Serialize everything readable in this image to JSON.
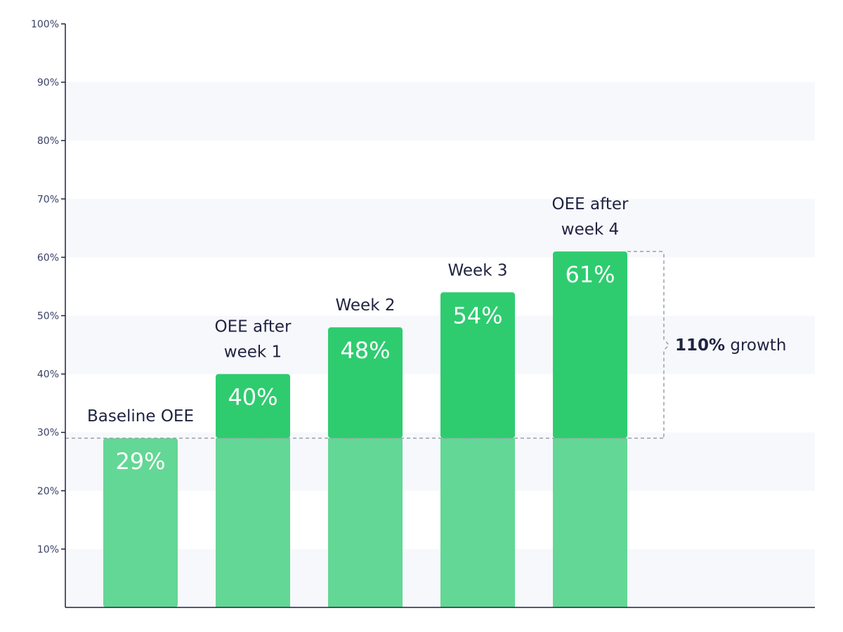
{
  "chart_data": {
    "type": "bar",
    "categories": [
      [
        "Baseline OEE"
      ],
      [
        "OEE after",
        "week 1"
      ],
      [
        "Week 2"
      ],
      [
        "Week 3"
      ],
      [
        "OEE after",
        "week 4"
      ]
    ],
    "values": [
      29,
      40,
      48,
      54,
      61
    ],
    "value_labels": [
      "29%",
      "40%",
      "48%",
      "54%",
      "61%"
    ],
    "baseline": 29,
    "ylim": [
      0,
      100
    ],
    "y_ticks": [
      10,
      20,
      30,
      40,
      50,
      60,
      70,
      80,
      90,
      100
    ],
    "y_tick_labels": [
      "10%",
      "20%",
      "30%",
      "40%",
      "50%",
      "60%",
      "70%",
      "80%",
      "90%",
      "100%"
    ],
    "grid": "alternating bands",
    "annotation": {
      "bold": "110%",
      "text": " growth"
    },
    "colors": {
      "bar": "#2ecc6f",
      "bar_below_baseline": "#63d795",
      "band": "#f6f8fc",
      "axis": "#1f2340",
      "dashed": "#9aa0a6"
    }
  }
}
